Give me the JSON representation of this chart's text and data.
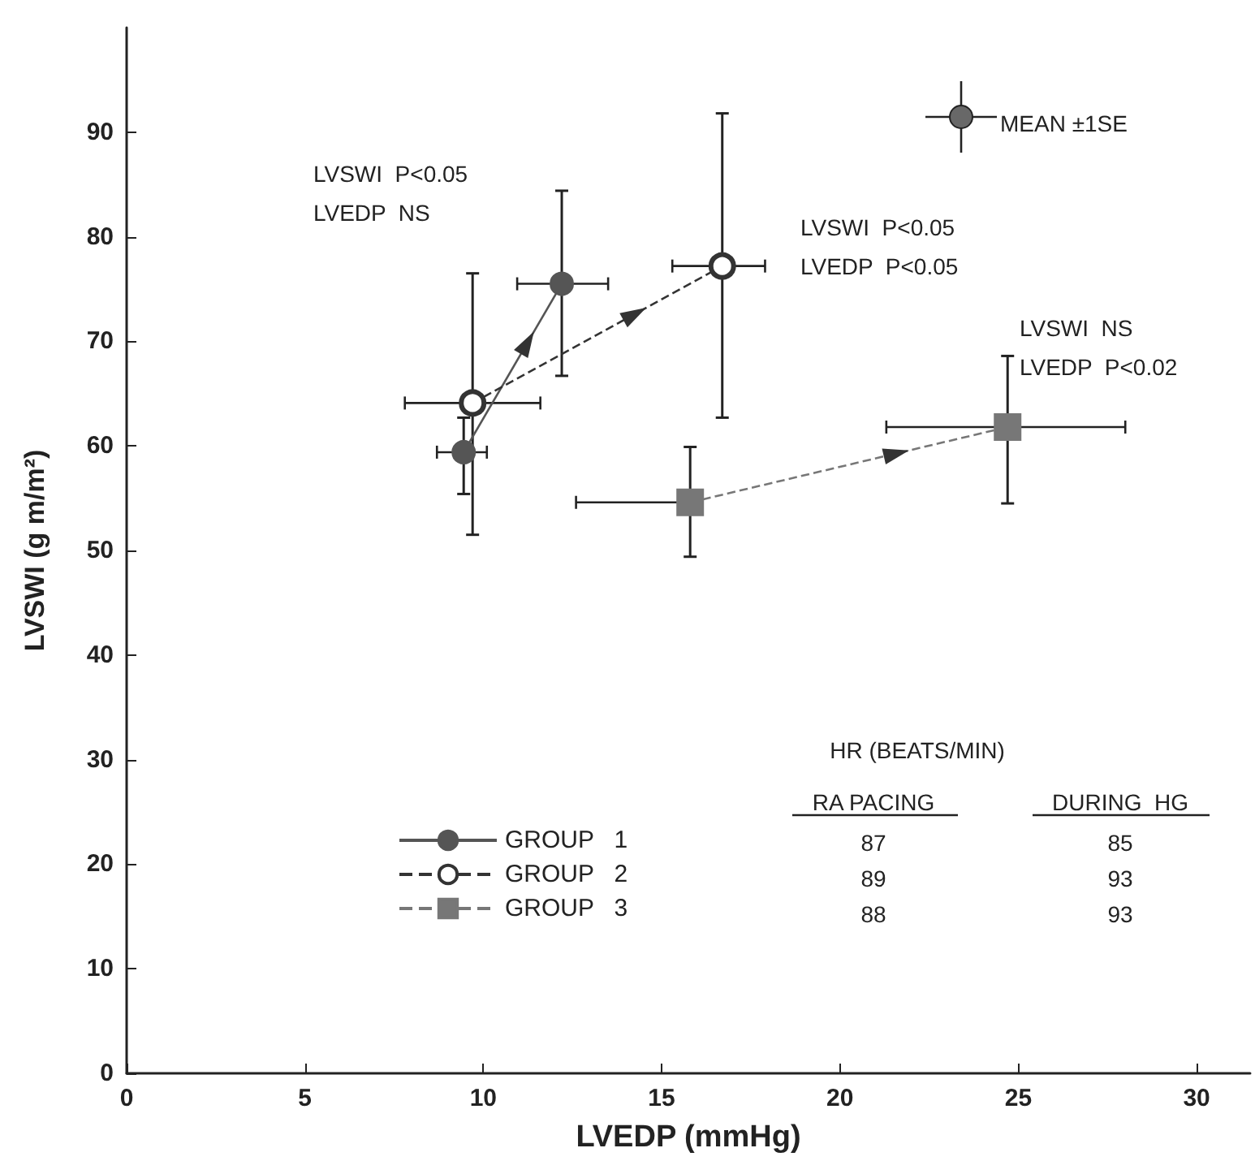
{
  "chart_data": {
    "type": "line",
    "xlabel": "LVEDP (mmHg)",
    "ylabel": "LVSWI (g m/m²)",
    "xlim": [
      0,
      31.5
    ],
    "ylim": [
      0,
      100
    ],
    "xticks": [
      0,
      5,
      10,
      15,
      20,
      25,
      30
    ],
    "yticks": [
      0,
      10,
      20,
      30,
      40,
      50,
      60,
      70,
      80,
      90
    ],
    "grid": false,
    "legend": "bottom",
    "series": [
      {
        "name": "GROUP   1",
        "color": "#555555",
        "marker": "circle",
        "line_style": "solid",
        "x": [
          9.45,
          12.2
        ],
        "values": [
          59.4,
          75.5
        ],
        "xerrors": [
          [
            8.7,
            10.1
          ],
          [
            10.95,
            13.5
          ]
        ],
        "errors": [
          [
            55.4,
            62.7
          ],
          [
            66.7,
            84.4
          ]
        ]
      },
      {
        "name": "GROUP   2",
        "color": "#333333",
        "marker": "circle",
        "line_style": "dashed",
        "x": [
          9.7,
          16.7
        ],
        "values": [
          64.1,
          77.2
        ],
        "xerrors": [
          [
            7.8,
            11.6
          ],
          [
            15.3,
            17.9
          ]
        ],
        "errors": [
          [
            51.5,
            76.5
          ],
          [
            62.7,
            91.8
          ]
        ]
      },
      {
        "name": "GROUP   3",
        "color": "#777777",
        "marker": "square",
        "line_style": "dashed",
        "x": [
          15.8,
          24.7
        ],
        "values": [
          54.6,
          61.8
        ],
        "xerrors": [
          [
            12.6,
            16.1
          ],
          [
            21.3,
            28.0
          ]
        ],
        "errors": [
          [
            49.4,
            59.9
          ],
          [
            54.5,
            68.6
          ]
        ]
      }
    ],
    "annotations": [
      "MEAN ±1SE",
      "LVSWI  P<0.05\nLVEDP  NS",
      "LVSWI  P<0.05\nLVEDP  P<0.05",
      "LVSWI  NS\nLVEDP  P<0.02",
      "HR (BEATS/MIN)",
      "RA PACING",
      "DURING  HG",
      "87",
      "85",
      "89",
      "93",
      "88",
      "93"
    ]
  }
}
